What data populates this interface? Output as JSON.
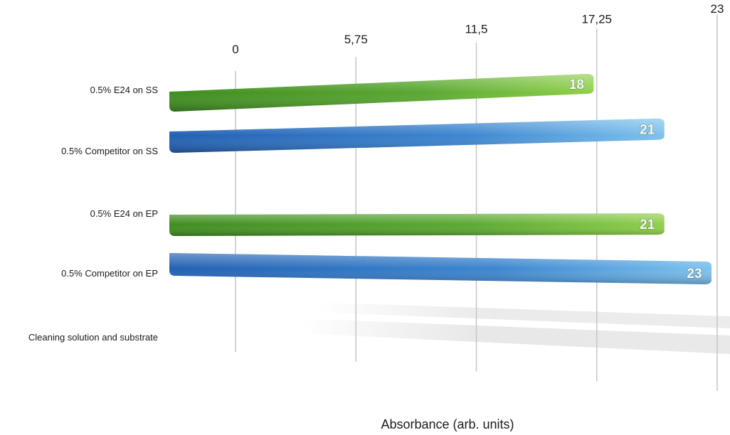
{
  "chart_data": {
    "type": "bar",
    "orientation": "horizontal",
    "categories": [
      "0.5% E24 on SS",
      "0.5% Competitor on SS",
      "0.5% E24 on EP",
      "0.5% Competitor on EP",
      "Cleaning solution and substrate"
    ],
    "values": [
      18,
      21,
      21,
      23,
      null
    ],
    "bar_colors": [
      "#5aa832",
      "#3d86cf",
      "#5aa832",
      "#3d86cf",
      null
    ],
    "xlabel": "Absorbance (arb. units)",
    "xlim": [
      0,
      23
    ],
    "ticks": [
      "0",
      "5,75",
      "11,5",
      "17,25",
      "23"
    ],
    "tick_values": [
      0,
      5.75,
      11.5,
      17.25,
      23
    ],
    "grid": true,
    "legend": "none"
  }
}
